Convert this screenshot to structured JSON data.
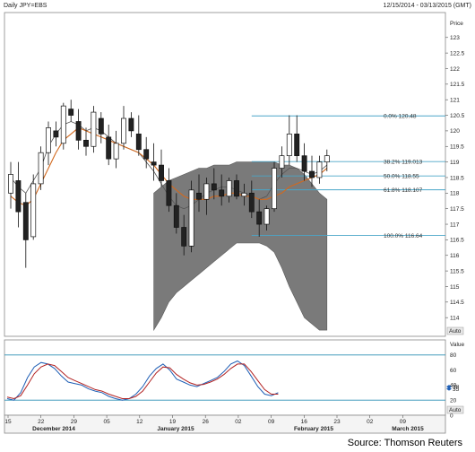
{
  "header": {
    "title": "Daily JPY=EBS",
    "date_range": "12/15/2014 - 03/13/2015 (GMT)"
  },
  "source_label": "Source: Thomson Reuters",
  "colors": {
    "cloud": "#7a7a7a",
    "fib_line": "#4aa6c8",
    "orange_ma": "#d2691e",
    "tenkan": "#555555",
    "stoch_k": "#1f5fb5",
    "stoch_d": "#b22222",
    "stoch_level": "#2b8fb5",
    "blue_mark": "#1f5fb5"
  },
  "chart_data": [
    {
      "type": "candlestick",
      "panel": "price",
      "ylabel": "Price",
      "ylim": [
        113.4,
        123.8
      ],
      "y_ticks": [
        114,
        114.5,
        115,
        115.5,
        116,
        116.5,
        117,
        117.5,
        118,
        118.5,
        119,
        119.5,
        120,
        120.5,
        121,
        121.5,
        122,
        122.5,
        123
      ],
      "x_ticks": [
        "15",
        "22",
        "29",
        "05",
        "12",
        "19",
        "26",
        "02",
        "09",
        "16",
        "23",
        "02",
        "09"
      ],
      "month_labels": [
        "December 2014",
        "January 2015",
        "February 2015",
        "March 2015"
      ],
      "fib_levels": [
        {
          "label": "0.0%",
          "value": 120.48
        },
        {
          "label": "38.2%",
          "value": 119.013
        },
        {
          "label": "50.0%",
          "value": 118.55
        },
        {
          "label": "61.8%",
          "value": 118.107
        },
        {
          "label": "100.0%",
          "value": 116.64
        }
      ],
      "value_markers": [
        {
          "label": "Auto",
          "value": null
        }
      ],
      "candles": [
        {
          "o": 118.0,
          "h": 119.0,
          "l": 117.5,
          "c": 118.6
        },
        {
          "o": 118.4,
          "h": 119.0,
          "l": 116.9,
          "c": 117.4
        },
        {
          "o": 117.7,
          "h": 118.0,
          "l": 115.6,
          "c": 116.5
        },
        {
          "o": 116.6,
          "h": 118.6,
          "l": 116.5,
          "c": 118.3
        },
        {
          "o": 118.3,
          "h": 119.5,
          "l": 118.1,
          "c": 119.3
        },
        {
          "o": 119.3,
          "h": 120.3,
          "l": 118.9,
          "c": 120.1
        },
        {
          "o": 120.0,
          "h": 120.3,
          "l": 119.5,
          "c": 119.8
        },
        {
          "o": 119.6,
          "h": 120.9,
          "l": 119.4,
          "c": 120.8
        },
        {
          "o": 120.7,
          "h": 121.0,
          "l": 120.3,
          "c": 120.5
        },
        {
          "o": 120.3,
          "h": 120.7,
          "l": 119.4,
          "c": 119.7
        },
        {
          "o": 119.7,
          "h": 120.1,
          "l": 119.2,
          "c": 119.5
        },
        {
          "o": 119.5,
          "h": 120.8,
          "l": 119.3,
          "c": 120.6
        },
        {
          "o": 120.4,
          "h": 120.6,
          "l": 119.6,
          "c": 119.9
        },
        {
          "o": 119.8,
          "h": 120.2,
          "l": 118.9,
          "c": 119.1
        },
        {
          "o": 119.1,
          "h": 120.0,
          "l": 118.8,
          "c": 119.6
        },
        {
          "o": 119.6,
          "h": 120.8,
          "l": 119.4,
          "c": 120.4
        },
        {
          "o": 120.4,
          "h": 120.6,
          "l": 119.8,
          "c": 120.0
        },
        {
          "o": 119.9,
          "h": 120.5,
          "l": 119.2,
          "c": 119.4
        },
        {
          "o": 119.4,
          "h": 119.8,
          "l": 118.8,
          "c": 119.1
        },
        {
          "o": 119.0,
          "h": 119.6,
          "l": 118.4,
          "c": 118.9
        },
        {
          "o": 118.9,
          "h": 119.4,
          "l": 118.2,
          "c": 118.4
        },
        {
          "o": 118.4,
          "h": 118.8,
          "l": 117.4,
          "c": 117.6
        },
        {
          "o": 117.6,
          "h": 118.0,
          "l": 116.7,
          "c": 116.9
        },
        {
          "o": 116.9,
          "h": 117.3,
          "l": 116.0,
          "c": 116.3
        },
        {
          "o": 116.3,
          "h": 118.4,
          "l": 116.1,
          "c": 118.1
        },
        {
          "o": 118.0,
          "h": 118.6,
          "l": 117.4,
          "c": 117.8
        },
        {
          "o": 117.8,
          "h": 118.5,
          "l": 117.3,
          "c": 118.3
        },
        {
          "o": 118.3,
          "h": 118.8,
          "l": 117.8,
          "c": 118.1
        },
        {
          "o": 118.1,
          "h": 118.6,
          "l": 117.6,
          "c": 117.9
        },
        {
          "o": 117.9,
          "h": 118.5,
          "l": 117.7,
          "c": 118.4
        },
        {
          "o": 118.4,
          "h": 118.6,
          "l": 117.8,
          "c": 117.9
        },
        {
          "o": 117.9,
          "h": 118.3,
          "l": 117.6,
          "c": 118.0
        },
        {
          "o": 118.0,
          "h": 118.4,
          "l": 117.2,
          "c": 117.4
        },
        {
          "o": 117.4,
          "h": 117.8,
          "l": 116.6,
          "c": 117.0
        },
        {
          "o": 117.0,
          "h": 117.6,
          "l": 116.8,
          "c": 117.5
        },
        {
          "o": 117.5,
          "h": 119.0,
          "l": 117.4,
          "c": 118.8
        },
        {
          "o": 118.8,
          "h": 119.5,
          "l": 118.5,
          "c": 119.2
        },
        {
          "o": 119.2,
          "h": 120.5,
          "l": 118.9,
          "c": 119.9
        },
        {
          "o": 119.9,
          "h": 120.5,
          "l": 119.0,
          "c": 119.2
        },
        {
          "o": 119.2,
          "h": 119.6,
          "l": 118.4,
          "c": 118.7
        },
        {
          "o": 118.7,
          "h": 119.2,
          "l": 118.2,
          "c": 118.5
        },
        {
          "o": 118.5,
          "h": 119.2,
          "l": 118.3,
          "c": 119.0
        },
        {
          "o": 119.0,
          "h": 119.4,
          "l": 118.7,
          "c": 119.2
        }
      ],
      "ma_orange": [
        117.9,
        117.7,
        117.6,
        117.8,
        118.3,
        118.8,
        119.3,
        119.7,
        119.9,
        120.1,
        120.0,
        119.9,
        119.8,
        119.7,
        119.6,
        119.5,
        119.4,
        119.3,
        119.1,
        118.9,
        118.6,
        118.3,
        118.1,
        117.9,
        117.8,
        117.8,
        117.8,
        117.9,
        117.9,
        118.0,
        118.0,
        117.9,
        117.9,
        117.8,
        117.8,
        117.9,
        118.0,
        118.2,
        118.3,
        118.4,
        118.5,
        118.6,
        118.8
      ],
      "tenkan": [
        118.5,
        118.2,
        118.0,
        118.4,
        118.8,
        119.5,
        119.9,
        120.2,
        120.3,
        120.2,
        120.0,
        120.1,
        120.0,
        119.8,
        119.6,
        119.5,
        119.4,
        119.3,
        119.0,
        118.7,
        118.3,
        117.9,
        117.6,
        117.5,
        117.6,
        117.8,
        118.0,
        118.1,
        118.2,
        118.2,
        118.1,
        118.0,
        117.9,
        117.8,
        117.9,
        118.3,
        118.6,
        118.8,
        118.8,
        118.7,
        118.6,
        118.7,
        118.9
      ],
      "cloud_upper": [
        118.0,
        118.2,
        118.4,
        118.5,
        118.6,
        118.7,
        118.8,
        118.8,
        118.9,
        118.9,
        118.9,
        119.0,
        119.0,
        119.0,
        119.0,
        119.0,
        119.0,
        118.9,
        118.9,
        118.8,
        118.6,
        118.3,
        118.0,
        117.8
      ],
      "cloud_lower": [
        113.6,
        114.0,
        114.5,
        114.8,
        115.0,
        115.2,
        115.4,
        115.6,
        115.8,
        116.0,
        116.2,
        116.4,
        116.4,
        116.4,
        116.4,
        116.3,
        116.1,
        115.6,
        115.0,
        114.5,
        114.0,
        113.8,
        113.6,
        113.6
      ]
    },
    {
      "type": "line",
      "panel": "stochastic",
      "ylabel": "Value",
      "ylim": [
        0,
        100
      ],
      "levels": [
        80,
        20
      ],
      "y_ticks": [
        0,
        20,
        40,
        60,
        80
      ],
      "series": [
        {
          "values": [
            22,
            20,
            30,
            50,
            64,
            70,
            68,
            62,
            52,
            44,
            42,
            40,
            35,
            32,
            30,
            25,
            22,
            20,
            22,
            28,
            38,
            52,
            62,
            68,
            60,
            48,
            44,
            40,
            38,
            42,
            46,
            50,
            58,
            68,
            72,
            66,
            52,
            38,
            28,
            26,
            30
          ]
        },
        {
          "values": [
            24,
            22,
            26,
            40,
            55,
            64,
            68,
            66,
            58,
            50,
            46,
            42,
            38,
            34,
            32,
            28,
            25,
            22,
            22,
            25,
            32,
            44,
            56,
            64,
            63,
            54,
            48,
            43,
            40,
            41,
            44,
            48,
            54,
            62,
            68,
            68,
            58,
            46,
            34,
            28,
            28
          ]
        }
      ],
      "value_markers": [
        {
          "label": "",
          "value": 38
        },
        {
          "label": "",
          "value": 35
        }
      ]
    }
  ]
}
